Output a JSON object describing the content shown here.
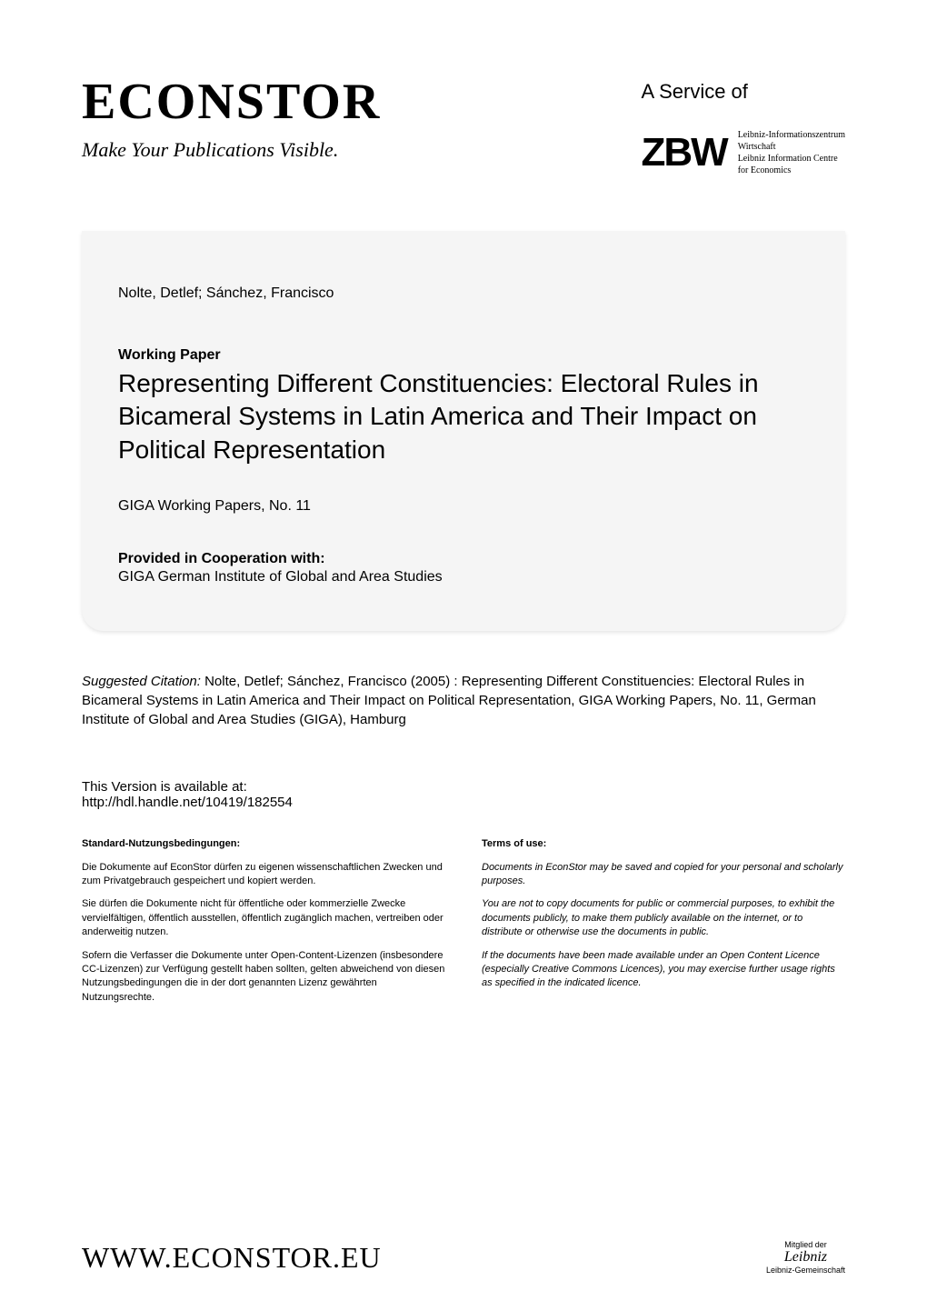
{
  "header": {
    "logo_text": "ECONSTOR",
    "tagline": "Make Your Publications Visible.",
    "service_of": "A Service of",
    "zbw_logo": "ZBW",
    "zbw_line1": "Leibniz-Informationszentrum",
    "zbw_line2": "Wirtschaft",
    "zbw_line3": "Leibniz Information Centre",
    "zbw_line4": "for Economics"
  },
  "card": {
    "authors": "Nolte, Detlef; Sánchez, Francisco",
    "doc_type": "Working Paper",
    "title": "Representing Different Constituencies: Electoral Rules in Bicameral Systems in Latin America and Their Impact on Political Representation",
    "series": "GIGA Working Papers, No. 11",
    "coop_label": "Provided in Cooperation with:",
    "coop_value": "GIGA German Institute of Global and Area Studies"
  },
  "citation": {
    "label": "Suggested Citation: ",
    "text": "Nolte, Detlef; Sánchez, Francisco (2005) : Representing Different Constituencies: Electoral Rules in Bicameral Systems in Latin America and Their Impact on Political Representation, GIGA Working Papers, No. 11, German Institute of Global and Area Studies (GIGA), Hamburg"
  },
  "version": {
    "label": "This Version is available at:",
    "url": "http://hdl.handle.net/10419/182554"
  },
  "terms_de": {
    "heading": "Standard-Nutzungsbedingungen:",
    "p1": "Die Dokumente auf EconStor dürfen zu eigenen wissenschaftlichen Zwecken und zum Privatgebrauch gespeichert und kopiert werden.",
    "p2": "Sie dürfen die Dokumente nicht für öffentliche oder kommerzielle Zwecke vervielfältigen, öffentlich ausstellen, öffentlich zugänglich machen, vertreiben oder anderweitig nutzen.",
    "p3": "Sofern die Verfasser die Dokumente unter Open-Content-Lizenzen (insbesondere CC-Lizenzen) zur Verfügung gestellt haben sollten, gelten abweichend von diesen Nutzungsbedingungen die in der dort genannten Lizenz gewährten Nutzungsrechte."
  },
  "terms_en": {
    "heading": "Terms of use:",
    "p1": "Documents in EconStor may be saved and copied for your personal and scholarly purposes.",
    "p2": "You are not to copy documents for public or commercial purposes, to exhibit the documents publicly, to make them publicly available on the internet, or to distribute or otherwise use the documents in public.",
    "p3": "If the documents have been made available under an Open Content Licence (especially Creative Commons Licences), you may exercise further usage rights as specified in the indicated licence."
  },
  "footer": {
    "url": "WWW.ECONSTOR.EU",
    "leibniz_top": "Mitglied der",
    "leibniz_sig": "Leibniz",
    "leibniz_bottom": "Leibniz-Gemeinschaft"
  },
  "styling": {
    "background_color": "#ffffff",
    "card_background": "#f5f5f5",
    "text_color": "#000000",
    "title_fontsize": 28,
    "body_fontsize": 15,
    "terms_fontsize": 11,
    "logo_fontsize": 56,
    "footer_url_fontsize": 32
  }
}
